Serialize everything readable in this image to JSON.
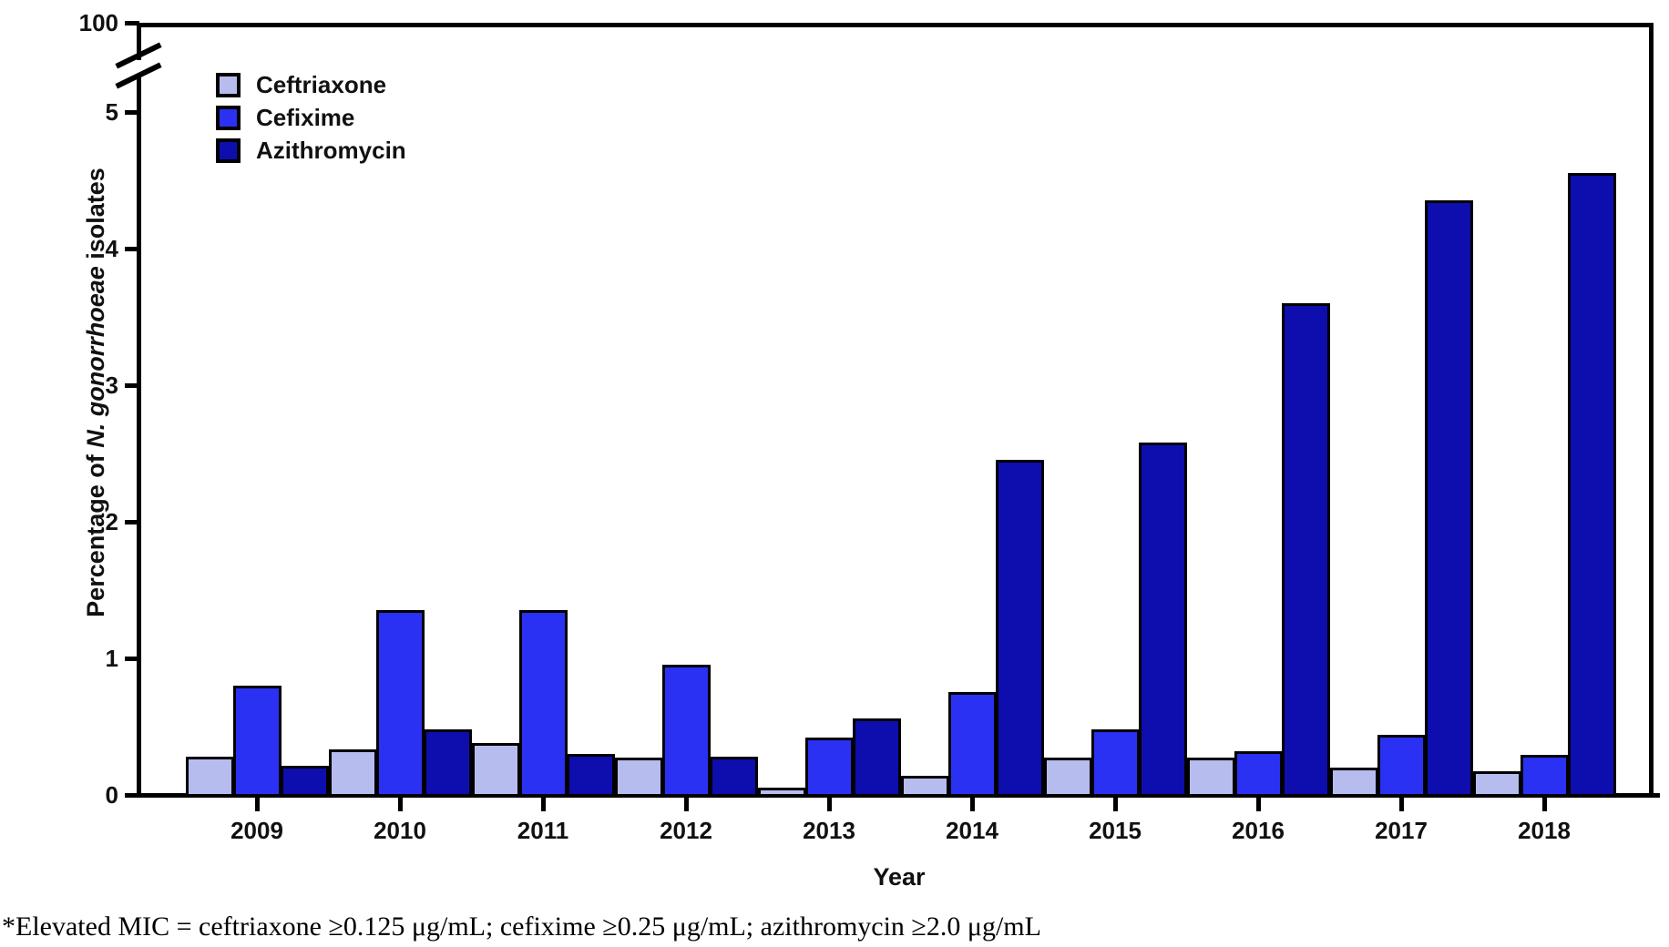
{
  "figure": {
    "x_axis_title": "Year",
    "y_axis_title": {
      "prefix": "Percentage of ",
      "italic": "N. gonorrhoeae",
      "suffix": " isolates"
    },
    "footnote": "*Elevated MIC = ceftriaxone ≥0.125 μg/mL; cefixime ≥0.25 μg/mL; azithromycin ≥2.0 μg/mL"
  },
  "chart_data": {
    "type": "bar",
    "title": "",
    "xlabel": "Year",
    "ylabel": "Percentage of N. gonorrhoeae isolates",
    "ylim": [
      0,
      5
    ],
    "grid": false,
    "legend_position": "top-left",
    "y_axis_break": {
      "upper_tick_label": "100"
    },
    "y_tick_labels": [
      "0",
      "1",
      "2",
      "3",
      "4",
      "5"
    ],
    "categories": [
      "2009",
      "2010",
      "2011",
      "2012",
      "2013",
      "2014",
      "2015",
      "2016",
      "2017",
      "2018"
    ],
    "series": [
      {
        "name": "Ceftriaxone",
        "color": "#b7bcef",
        "values": [
          0.28,
          0.33,
          0.38,
          0.27,
          0.05,
          0.14,
          0.27,
          0.27,
          0.2,
          0.17
        ]
      },
      {
        "name": "Cefixime",
        "color": "#2b31f2",
        "values": [
          0.8,
          1.35,
          1.35,
          0.95,
          0.42,
          0.75,
          0.48,
          0.32,
          0.44,
          0.29
        ]
      },
      {
        "name": "Azithromycin",
        "color": "#0e0dae",
        "values": [
          0.21,
          0.48,
          0.3,
          0.28,
          0.56,
          2.45,
          2.58,
          3.6,
          4.35,
          4.55
        ]
      }
    ]
  },
  "colors": {
    "axis": "#000000",
    "bar_border": "#000000",
    "background": "#ffffff"
  }
}
